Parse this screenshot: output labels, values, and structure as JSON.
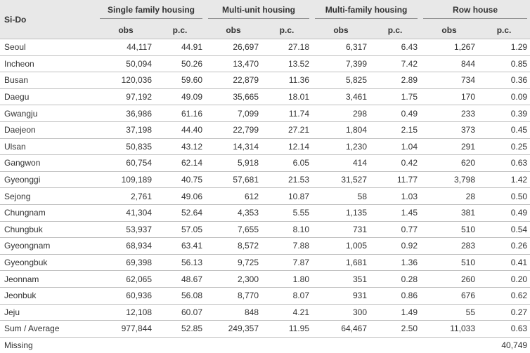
{
  "header": {
    "row_label": "Si-Do",
    "groups": [
      "Single family housing",
      "Multi-unit housing",
      "Multi-family housing",
      "Row house"
    ],
    "sub_labels": [
      "obs",
      "p.c.",
      "obs",
      "p.c.",
      "obs",
      "p.c.",
      "obs",
      "p.c."
    ]
  },
  "rows": [
    {
      "name": "Seoul",
      "values": [
        "44,117",
        "44.91",
        "26,697",
        "27.18",
        "6,317",
        "6.43",
        "1,267",
        "1.29"
      ]
    },
    {
      "name": "Incheon",
      "values": [
        "50,094",
        "50.26",
        "13,470",
        "13.52",
        "7,399",
        "7.42",
        "844",
        "0.85"
      ]
    },
    {
      "name": "Busan",
      "values": [
        "120,036",
        "59.60",
        "22,879",
        "11.36",
        "5,825",
        "2.89",
        "734",
        "0.36"
      ]
    },
    {
      "name": "Daegu",
      "values": [
        "97,192",
        "49.09",
        "35,665",
        "18.01",
        "3,461",
        "1.75",
        "170",
        "0.09"
      ]
    },
    {
      "name": "Gwangju",
      "values": [
        "36,986",
        "61.16",
        "7,099",
        "11.74",
        "298",
        "0.49",
        "233",
        "0.39"
      ]
    },
    {
      "name": "Daejeon",
      "values": [
        "37,198",
        "44.40",
        "22,799",
        "27.21",
        "1,804",
        "2.15",
        "373",
        "0.45"
      ]
    },
    {
      "name": "Ulsan",
      "values": [
        "50,835",
        "43.12",
        "14,314",
        "12.14",
        "1,230",
        "1.04",
        "291",
        "0.25"
      ]
    },
    {
      "name": "Gangwon",
      "values": [
        "60,754",
        "62.14",
        "5,918",
        "6.05",
        "414",
        "0.42",
        "620",
        "0.63"
      ]
    },
    {
      "name": "Gyeonggi",
      "values": [
        "109,189",
        "40.75",
        "57,681",
        "21.53",
        "31,527",
        "11.77",
        "3,798",
        "1.42"
      ]
    },
    {
      "name": "Sejong",
      "values": [
        "2,761",
        "49.06",
        "612",
        "10.87",
        "58",
        "1.03",
        "28",
        "0.50"
      ]
    },
    {
      "name": "Chungnam",
      "values": [
        "41,304",
        "52.64",
        "4,353",
        "5.55",
        "1,135",
        "1.45",
        "381",
        "0.49"
      ]
    },
    {
      "name": "Chungbuk",
      "values": [
        "53,937",
        "57.05",
        "7,655",
        "8.10",
        "731",
        "0.77",
        "510",
        "0.54"
      ]
    },
    {
      "name": "Gyeongnam",
      "values": [
        "68,934",
        "63.41",
        "8,572",
        "7.88",
        "1,005",
        "0.92",
        "283",
        "0.26"
      ]
    },
    {
      "name": "Gyeongbuk",
      "values": [
        "69,398",
        "56.13",
        "9,725",
        "7.87",
        "1,681",
        "1.36",
        "510",
        "0.41"
      ]
    },
    {
      "name": "Jeonnam",
      "values": [
        "62,065",
        "48.67",
        "2,300",
        "1.80",
        "351",
        "0.28",
        "260",
        "0.20"
      ]
    },
    {
      "name": "Jeonbuk",
      "values": [
        "60,936",
        "56.08",
        "8,770",
        "8.07",
        "931",
        "0.86",
        "676",
        "0.62"
      ]
    },
    {
      "name": "Jeju",
      "values": [
        "12,108",
        "60.07",
        "848",
        "4.21",
        "300",
        "1.49",
        "55",
        "0.27"
      ]
    },
    {
      "name": "Sum / Average",
      "values": [
        "977,844",
        "52.85",
        "249,357",
        "11.95",
        "64,467",
        "2.50",
        "11,033",
        "0.63"
      ]
    }
  ],
  "missing": {
    "label": "Missing",
    "value": "40,749"
  }
}
